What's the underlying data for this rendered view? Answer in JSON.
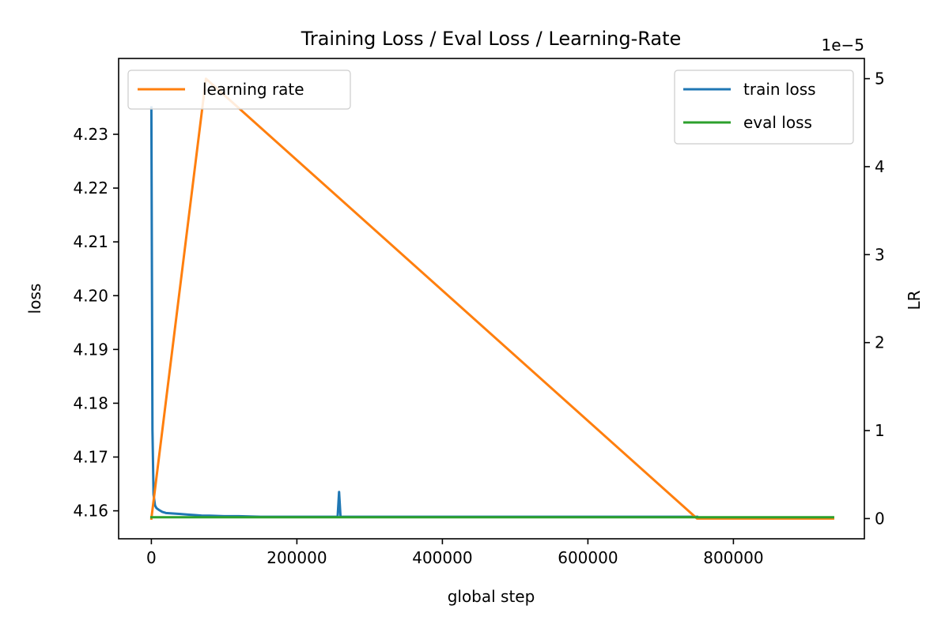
{
  "chart_data": {
    "type": "line",
    "title": "Training Loss / Eval Loss / Learning-Rate",
    "xlabel": "global step",
    "ylabel_left": "loss",
    "ylabel_right": "LR",
    "right_axis_multiplier": "1e−5",
    "xlim": [
      -45000,
      980000
    ],
    "ylim_left": [
      4.1548,
      4.2441
    ],
    "ylim_right": [
      -2.297e-06,
      5.2297e-05
    ],
    "x_ticks": [
      0,
      200000,
      400000,
      600000,
      800000
    ],
    "x_tick_labels": [
      "0",
      "200000",
      "400000",
      "600000",
      "800000"
    ],
    "left_ticks": [
      4.16,
      4.17,
      4.18,
      4.19,
      4.2,
      4.21,
      4.22,
      4.23
    ],
    "left_tick_labels": [
      "4.16",
      "4.17",
      "4.18",
      "4.19",
      "4.20",
      "4.21",
      "4.22",
      "4.23"
    ],
    "right_ticks": [
      0,
      1e-05,
      2e-05,
      3e-05,
      4e-05,
      5e-05
    ],
    "right_tick_labels": [
      "0",
      "1",
      "2",
      "3",
      "4",
      "5"
    ],
    "grid": false,
    "legend_left": "top-left",
    "legend_right": "top-right",
    "colors": {
      "train": "#1f77b4",
      "eval": "#2ca02c",
      "lr": "#ff7f0e"
    },
    "series": [
      {
        "name": "train loss",
        "axis": "left",
        "color": "#1f77b4",
        "x": [
          0,
          1500,
          3000,
          5000,
          7000,
          10000,
          15000,
          20000,
          30000,
          40000,
          50000,
          60000,
          70000,
          80000,
          100000,
          120000,
          150000,
          200000,
          250000,
          256000,
          258000,
          260000,
          262000,
          300000,
          400000,
          500000,
          600000,
          700000,
          750000
        ],
        "y": [
          4.235,
          4.175,
          4.163,
          4.161,
          4.1605,
          4.1602,
          4.1598,
          4.1596,
          4.1595,
          4.1594,
          4.1593,
          4.1592,
          4.1591,
          4.1591,
          4.159,
          4.159,
          4.1589,
          4.1589,
          4.1589,
          4.1589,
          4.1635,
          4.1589,
          4.1589,
          4.1589,
          4.1589,
          4.1589,
          4.1589,
          4.1589,
          4.1589
        ]
      },
      {
        "name": "eval loss",
        "axis": "left",
        "color": "#2ca02c",
        "x": [
          0,
          100000,
          200000,
          300000,
          400000,
          500000,
          600000,
          700000,
          800000,
          937000
        ],
        "y": [
          4.1588,
          4.1588,
          4.1588,
          4.1588,
          4.1588,
          4.1588,
          4.1588,
          4.1588,
          4.1588,
          4.1588
        ]
      },
      {
        "name": "learning rate",
        "axis": "right",
        "color": "#ff7f0e",
        "x": [
          0,
          75000,
          750000,
          937000
        ],
        "y": [
          0,
          5e-05,
          0,
          0
        ]
      }
    ]
  }
}
